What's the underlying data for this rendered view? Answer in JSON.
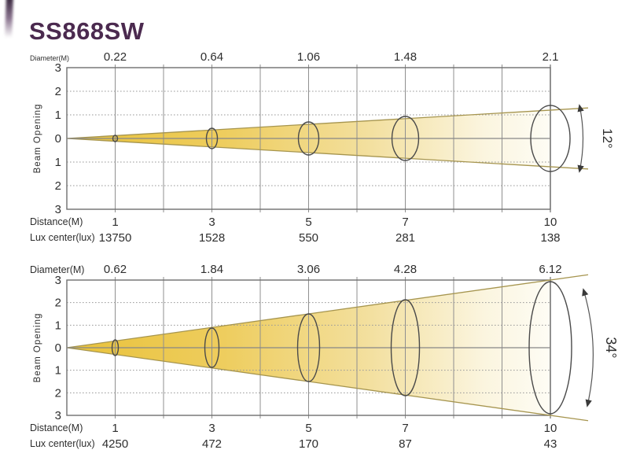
{
  "title": "SS868SW",
  "colors": {
    "title_purple": "#4b2a4f",
    "beam_gold": "#e9c23a",
    "beam_gold_mid": "#f3e0a0",
    "beam_pale": "#fefdf7",
    "cone_edge": "#a6954f",
    "grid_line": "#8f8f8f",
    "frame": "#6f6f6f",
    "ellipse_stroke": "#4a4a4a",
    "arrow": "#3a3a3a",
    "text_dark": "#2e2e2e"
  },
  "chart_data": [
    {
      "type": "area",
      "title": "SS868SW beam profile (narrow)",
      "beam_angle_deg": 12,
      "angle_label": "12°",
      "ylabel": "Beam Opening",
      "xlim": [
        0,
        10
      ],
      "ylim": [
        -3,
        3
      ],
      "grid": true,
      "y_tick_labels": [
        "3",
        "2",
        "1",
        "0",
        "1",
        "2",
        "3"
      ],
      "row_labels": {
        "diameter": "Diameter(M)",
        "distance": "Distance(M)",
        "lux": "Lux center(lux)"
      },
      "distances_m": [
        "1",
        "3",
        "5",
        "7",
        "10"
      ],
      "diameter_m": [
        "0.22",
        "0.64",
        "1.06",
        "1.48",
        "2.1"
      ],
      "lux_center_lux": [
        "13750",
        "1528",
        "550",
        "281",
        "138"
      ]
    },
    {
      "type": "area",
      "title": "SS868SW beam profile (wide)",
      "beam_angle_deg": 34,
      "angle_label": "34°",
      "ylabel": "Beam Opening",
      "xlim": [
        0,
        10
      ],
      "ylim": [
        -3,
        3
      ],
      "grid": true,
      "y_tick_labels": [
        "3",
        "2",
        "1",
        "0",
        "1",
        "2",
        "3"
      ],
      "row_labels": {
        "diameter": "Diameter(M)",
        "distance": "Distance(M)",
        "lux": "Lux center(lux)"
      },
      "distances_m": [
        "1",
        "3",
        "5",
        "7",
        "10"
      ],
      "diameter_m": [
        "0.62",
        "1.84",
        "3.06",
        "4.28",
        "6.12"
      ],
      "lux_center_lux": [
        "4250",
        "472",
        "170",
        "87",
        "43"
      ]
    }
  ]
}
